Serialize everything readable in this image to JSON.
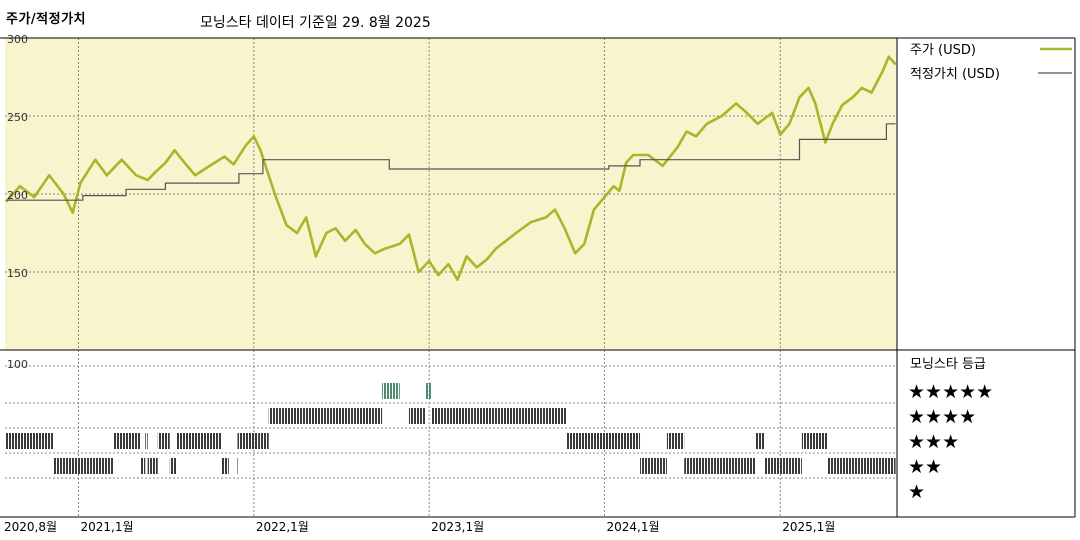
{
  "header": {
    "title": "주가/적정가치",
    "subtitle": "모닝스타 데이터 기준일 29. 8월 2025"
  },
  "colors": {
    "price": "#aab52a",
    "fair_value": "#555555",
    "plot_bg": "#f8f4ce",
    "grid": "#888888",
    "rating_dark": "#3a3a3a",
    "rating_green": "#4f8a73"
  },
  "chart_data": [
    {
      "type": "line",
      "title": "",
      "ylim": [
        100,
        300
      ],
      "y_ticks": [
        {
          "value": 300,
          "label": "300"
        },
        {
          "value": 250,
          "label": "250"
        },
        {
          "value": 200,
          "label": "200"
        },
        {
          "value": 150,
          "label": "150"
        }
      ],
      "xlim": [
        "2020-08-01",
        "2025-09-01"
      ],
      "x_ticks": [
        {
          "date": "2020-08-01",
          "label": "2020,8월"
        },
        {
          "date": "2021-01-01",
          "label": "2021,1월"
        },
        {
          "date": "2022-01-01",
          "label": "2022,1월"
        },
        {
          "date": "2023-01-01",
          "label": "2023,1월"
        },
        {
          "date": "2024-01-01",
          "label": "2024,1월"
        },
        {
          "date": "2025-01-01",
          "label": "2025,1월"
        }
      ],
      "legend_position": "right",
      "series": [
        {
          "name": "주가 (USD)",
          "kind": "price",
          "points": [
            [
              "2020-08-03",
              195
            ],
            [
              "2020-09-01",
              205
            ],
            [
              "2020-10-01",
              198
            ],
            [
              "2020-11-01",
              212
            ],
            [
              "2020-12-01",
              200
            ],
            [
              "2020-12-20",
              188
            ],
            [
              "2021-01-05",
              207
            ],
            [
              "2021-02-05",
              222
            ],
            [
              "2021-03-01",
              212
            ],
            [
              "2021-04-01",
              222
            ],
            [
              "2021-05-01",
              212
            ],
            [
              "2021-05-25",
              209
            ],
            [
              "2021-06-10",
              214
            ],
            [
              "2021-07-01",
              220
            ],
            [
              "2021-07-20",
              228
            ],
            [
              "2021-08-10",
              220
            ],
            [
              "2021-09-01",
              212
            ],
            [
              "2021-10-01",
              218
            ],
            [
              "2021-11-01",
              224
            ],
            [
              "2021-11-20",
              219
            ],
            [
              "2021-12-15",
              231
            ],
            [
              "2022-01-01",
              237
            ],
            [
              "2022-01-15",
              228
            ],
            [
              "2022-02-01",
              212
            ],
            [
              "2022-02-15",
              199
            ],
            [
              "2022-03-10",
              180
            ],
            [
              "2022-04-01",
              175
            ],
            [
              "2022-04-20",
              185
            ],
            [
              "2022-05-10",
              160
            ],
            [
              "2022-06-01",
              175
            ],
            [
              "2022-06-20",
              178
            ],
            [
              "2022-07-10",
              170
            ],
            [
              "2022-08-01",
              177
            ],
            [
              "2022-08-20",
              168
            ],
            [
              "2022-09-10",
              162
            ],
            [
              "2022-10-01",
              165
            ],
            [
              "2022-11-01",
              168
            ],
            [
              "2022-11-20",
              174
            ],
            [
              "2022-12-10",
              150
            ],
            [
              "2023-01-01",
              157
            ],
            [
              "2023-01-20",
              148
            ],
            [
              "2023-02-10",
              155
            ],
            [
              "2023-03-01",
              145
            ],
            [
              "2023-03-20",
              160
            ],
            [
              "2023-04-10",
              153
            ],
            [
              "2023-05-01",
              158
            ],
            [
              "2023-05-20",
              165
            ],
            [
              "2023-06-10",
              170
            ],
            [
              "2023-07-01",
              175
            ],
            [
              "2023-08-01",
              182
            ],
            [
              "2023-09-01",
              185
            ],
            [
              "2023-09-20",
              190
            ],
            [
              "2023-10-10",
              178
            ],
            [
              "2023-11-01",
              162
            ],
            [
              "2023-11-20",
              168
            ],
            [
              "2023-12-10",
              190
            ],
            [
              "2024-01-01",
              198
            ],
            [
              "2024-01-20",
              205
            ],
            [
              "2024-02-01",
              202
            ],
            [
              "2024-02-15",
              220
            ],
            [
              "2024-03-01",
              225
            ],
            [
              "2024-04-01",
              225
            ],
            [
              "2024-05-01",
              218
            ],
            [
              "2024-06-01",
              230
            ],
            [
              "2024-06-20",
              240
            ],
            [
              "2024-07-10",
              237
            ],
            [
              "2024-08-01",
              245
            ],
            [
              "2024-09-01",
              250
            ],
            [
              "2024-10-01",
              258
            ],
            [
              "2024-10-20",
              253
            ],
            [
              "2024-11-15",
              245
            ],
            [
              "2024-12-15",
              252
            ],
            [
              "2025-01-01",
              238
            ],
            [
              "2025-01-20",
              245
            ],
            [
              "2025-02-10",
              262
            ],
            [
              "2025-03-01",
              268
            ],
            [
              "2025-03-15",
              258
            ],
            [
              "2025-04-05",
              233
            ],
            [
              "2025-04-20",
              245
            ],
            [
              "2025-05-10",
              257
            ],
            [
              "2025-06-01",
              262
            ],
            [
              "2025-06-20",
              268
            ],
            [
              "2025-07-10",
              265
            ],
            [
              "2025-08-01",
              278
            ],
            [
              "2025-08-15",
              288
            ],
            [
              "2025-08-29",
              283
            ]
          ]
        },
        {
          "name": "적정가치 (USD)",
          "kind": "fair_value",
          "points": [
            [
              "2020-08-03",
              196
            ],
            [
              "2021-01-10",
              196
            ],
            [
              "2021-01-10",
              199
            ],
            [
              "2021-04-10",
              199
            ],
            [
              "2021-04-10",
              203
            ],
            [
              "2021-07-01",
              203
            ],
            [
              "2021-07-01",
              207
            ],
            [
              "2021-12-01",
              207
            ],
            [
              "2021-12-01",
              213
            ],
            [
              "2022-01-20",
              213
            ],
            [
              "2022-01-20",
              222
            ],
            [
              "2022-10-10",
              222
            ],
            [
              "2022-10-10",
              216
            ],
            [
              "2024-01-10",
              216
            ],
            [
              "2024-01-10",
              218
            ],
            [
              "2024-03-15",
              218
            ],
            [
              "2024-03-15",
              222
            ],
            [
              "2025-02-10",
              222
            ],
            [
              "2025-02-10",
              235
            ],
            [
              "2025-08-10",
              235
            ],
            [
              "2025-08-10",
              245
            ],
            [
              "2025-08-29",
              245
            ]
          ]
        }
      ]
    },
    {
      "type": "bar",
      "title": "모닝스타 등급",
      "y_ticks": [
        {
          "value": 100,
          "label": "100"
        }
      ],
      "levels": [
        "★★★★★",
        "★★★★",
        "★★★",
        "★★",
        "★"
      ],
      "ratings": [
        {
          "start": "2020-08-03",
          "end": "2020-11-10",
          "stars": 3
        },
        {
          "start": "2020-11-10",
          "end": "2021-03-15",
          "stars": 2
        },
        {
          "start": "2021-03-15",
          "end": "2021-05-10",
          "stars": 3
        },
        {
          "start": "2021-05-10",
          "end": "2021-05-20",
          "stars": 2
        },
        {
          "start": "2021-05-20",
          "end": "2021-05-25",
          "stars": 3
        },
        {
          "start": "2021-05-25",
          "end": "2021-06-15",
          "stars": 2
        },
        {
          "start": "2021-06-15",
          "end": "2021-07-10",
          "stars": 3
        },
        {
          "start": "2021-07-10",
          "end": "2021-07-25",
          "stars": 2
        },
        {
          "start": "2021-07-25",
          "end": "2021-10-25",
          "stars": 3
        },
        {
          "start": "2021-10-25",
          "end": "2021-11-10",
          "stars": 2
        },
        {
          "start": "2021-11-25",
          "end": "2021-11-28",
          "stars": 2
        },
        {
          "start": "2021-11-28",
          "end": "2022-01-08",
          "stars": 3
        },
        {
          "start": "2022-01-10",
          "end": "2022-02-01",
          "stars": 3
        },
        {
          "start": "2022-02-01",
          "end": "2022-09-25",
          "stars": 4
        },
        {
          "start": "2022-09-25",
          "end": "2022-11-01",
          "stars": 5
        },
        {
          "start": "2022-11-20",
          "end": "2022-11-24",
          "stars": 4
        },
        {
          "start": "2022-11-24",
          "end": "2022-12-25",
          "stars": 4
        },
        {
          "start": "2022-12-25",
          "end": "2023-01-05",
          "stars": 5
        },
        {
          "start": "2023-01-05",
          "end": "2023-10-15",
          "stars": 4
        },
        {
          "start": "2023-10-15",
          "end": "2024-03-15",
          "stars": 3
        },
        {
          "start": "2024-03-15",
          "end": "2024-05-10",
          "stars": 2
        },
        {
          "start": "2024-05-10",
          "end": "2024-06-15",
          "stars": 3
        },
        {
          "start": "2024-06-15",
          "end": "2024-11-10",
          "stars": 2
        },
        {
          "start": "2024-11-10",
          "end": "2024-11-30",
          "stars": 3
        },
        {
          "start": "2024-11-30",
          "end": "2025-02-15",
          "stars": 2
        },
        {
          "start": "2025-02-15",
          "end": "2025-04-10",
          "stars": 3
        },
        {
          "start": "2025-04-10",
          "end": "2025-05-10",
          "stars": 2
        },
        {
          "start": "2025-05-10",
          "end": "2025-08-29",
          "stars": 2
        }
      ]
    }
  ]
}
